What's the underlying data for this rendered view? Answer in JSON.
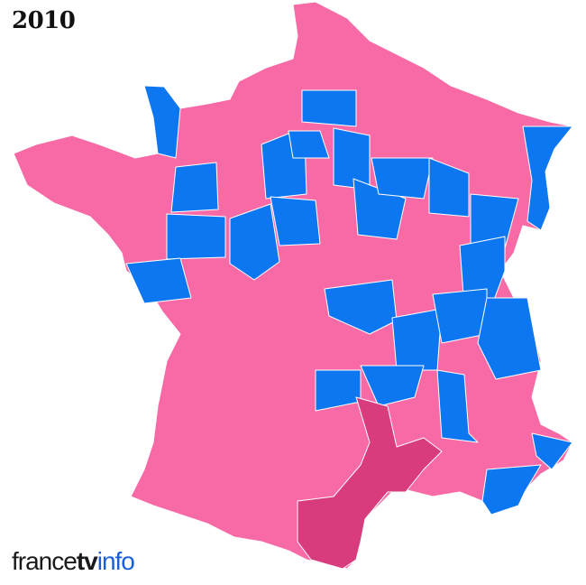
{
  "title": "2010",
  "logo": {
    "part1": "france",
    "part2": "tv",
    "part3": "info"
  },
  "legend_colors": {
    "left": "#f86aa6",
    "right": "#0d77f2",
    "other": "#d83c7d",
    "border": "#ffffff"
  }
}
